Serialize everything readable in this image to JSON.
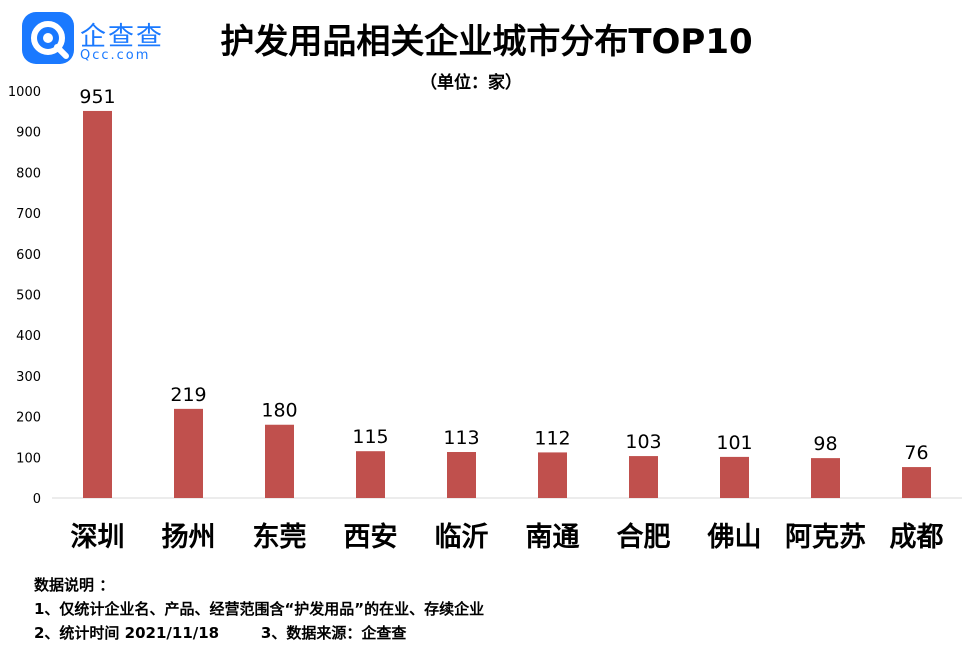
{
  "logo": {
    "text_cn": "企查查",
    "text_en": "Qcc.com"
  },
  "chart_data": {
    "type": "bar",
    "title": "护发用品相关企业城市分布TOP10",
    "subtitle": "（单位：家）",
    "categories": [
      "深圳",
      "扬州",
      "东莞",
      "西安",
      "临沂",
      "南通",
      "合肥",
      "佛山",
      "阿克苏",
      "成都"
    ],
    "values": [
      951,
      219,
      180,
      115,
      113,
      112,
      103,
      101,
      98,
      76
    ],
    "ylim": [
      0,
      1000
    ],
    "yticks": [
      0,
      100,
      200,
      300,
      400,
      500,
      600,
      700,
      800,
      900,
      1000
    ],
    "grid": false,
    "bar_color": "#c0504d"
  },
  "notes": {
    "heading": "数据说明 ：",
    "line1": "1、仅统计企业名、产品、经营范围含“护发用品”的在业、存续企业",
    "line2": "2、统计时间 2021/11/18        3、数据来源：企查查"
  }
}
